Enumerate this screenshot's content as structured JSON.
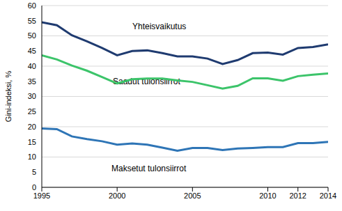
{
  "chart_data": {
    "type": "line",
    "y_label": "Gini-indeksi, %",
    "x": [
      1995,
      1996,
      1997,
      1998,
      1999,
      2000,
      2001,
      2002,
      2003,
      2004,
      2005,
      2006,
      2007,
      2008,
      2009,
      2010,
      2011,
      2012,
      2013,
      2014
    ],
    "series": [
      {
        "name": "Yhteisvaikutus",
        "color": "#1f3b70",
        "values": [
          54.5,
          53.5,
          50.2,
          48.2,
          46,
          43.6,
          45,
          45.2,
          44.3,
          43.2,
          43.2,
          42.5,
          40.7,
          42,
          44.3,
          44.5,
          43.8,
          46,
          46.3,
          47.2
        ]
      },
      {
        "name": "Saadut tulonsiirrot",
        "color": "#3cc46a",
        "values": [
          43.6,
          42.2,
          40.2,
          38.5,
          36.4,
          34.3,
          35.7,
          35.9,
          35.9,
          35.3,
          34.8,
          33.7,
          32.6,
          33.5,
          36,
          36,
          35.2,
          36.7,
          37.2,
          37.6
        ]
      },
      {
        "name": "Maksetut tulonsiirrot",
        "color": "#2e75b6",
        "values": [
          19.4,
          19.2,
          16.8,
          15.9,
          15.2,
          14.1,
          14.5,
          14.1,
          13.1,
          12.1,
          13,
          13,
          12.3,
          12.8,
          13,
          13.3,
          13.3,
          14.6,
          14.6,
          15
        ]
      }
    ],
    "xlim": [
      1995,
      2014
    ],
    "xticks": [
      1995,
      2000,
      2005,
      2010,
      2012,
      2014
    ],
    "ylim": [
      0,
      60
    ],
    "yticks": [
      0,
      5,
      10,
      15,
      20,
      25,
      30,
      35,
      40,
      45,
      50,
      55,
      60
    ],
    "grid": true,
    "legend": false
  }
}
